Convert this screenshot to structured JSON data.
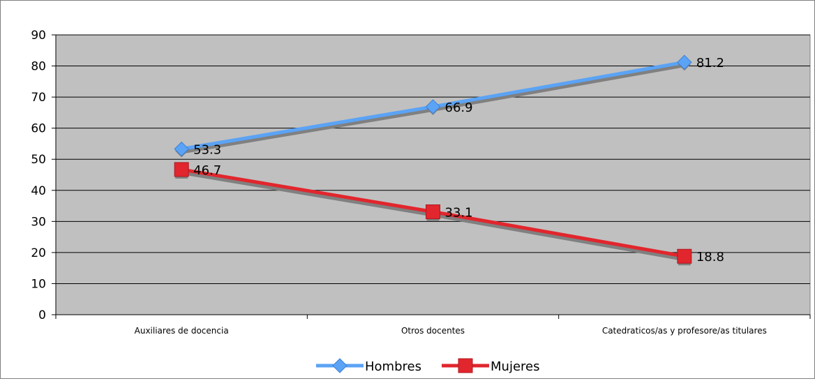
{
  "chart_data": {
    "type": "line",
    "categories": [
      "Auxiliares de docencia",
      "Otros docentes",
      "Catedraticos/as y profesore/as titulares"
    ],
    "series": [
      {
        "name": "Hombres",
        "values": [
          53.3,
          66.9,
          81.2
        ],
        "color": "#5BA3F5",
        "marker": "diamond"
      },
      {
        "name": "Mujeres",
        "values": [
          46.7,
          33.1,
          18.8
        ],
        "color": "#E1262D",
        "marker": "square"
      }
    ],
    "data_labels": {
      "Hombres": [
        "53.3",
        "66.9",
        "81.2"
      ],
      "Mujeres": [
        "46.7",
        "33.1",
        "18.8"
      ]
    },
    "ylim": [
      0,
      90
    ],
    "yticks": [
      "0",
      "10",
      "20",
      "30",
      "40",
      "50",
      "60",
      "70",
      "80",
      "90"
    ],
    "grid": true,
    "plot_background": "#C0C0C0",
    "legend_position": "bottom"
  }
}
